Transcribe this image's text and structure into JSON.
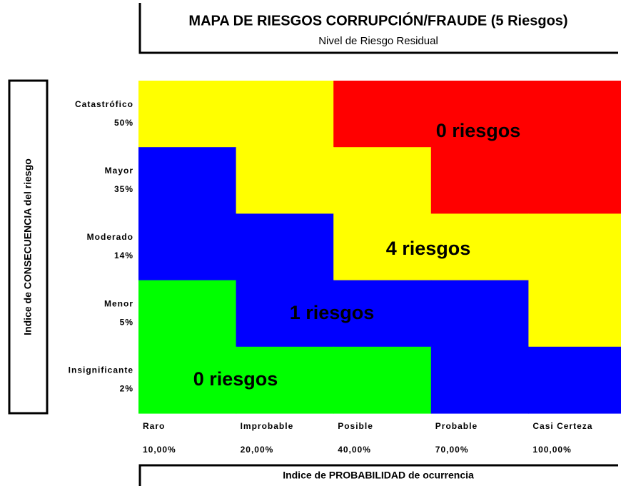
{
  "title": "MAPA DE RIESGOS CORRUPCIÓN/FRAUDE (5 Riesgos)",
  "subtitle": "Nivel de Riesgo Residual",
  "y_axis_label": "Indice de CONSECUENCIA del riesgo",
  "x_axis_label": "Indice de PROBABILIDAD de ocurrencia",
  "rows": [
    {
      "label": "Catastrófico",
      "value": "50%"
    },
    {
      "label": "Mayor",
      "value": "35%"
    },
    {
      "label": "Moderado",
      "value": "14%"
    },
    {
      "label": "Menor",
      "value": "5%"
    },
    {
      "label": "Insignificante",
      "value": "2%"
    }
  ],
  "columns": [
    {
      "label": "Raro",
      "value": "10,00%"
    },
    {
      "label": "Improbable",
      "value": "20,00%"
    },
    {
      "label": "Posible",
      "value": "40,00%"
    },
    {
      "label": "Probable",
      "value": "70,00%"
    },
    {
      "label": "Casi Certeza",
      "value": "100,00%"
    }
  ],
  "cells": [
    [
      "#ffff00",
      "#ffff00",
      "#ff0000",
      "#ff0000",
      "#ff0000"
    ],
    [
      "#0000ff",
      "#ffff00",
      "#ffff00",
      "#ff0000",
      "#ff0000"
    ],
    [
      "#0000ff",
      "#0000ff",
      "#ffff00",
      "#ffff00",
      "#ffff00"
    ],
    [
      "#00ff00",
      "#0000ff",
      "#0000ff",
      "#0000ff",
      "#ffff00"
    ],
    [
      "#00ff00",
      "#00ff00",
      "#00ff00",
      "#0000ff",
      "#0000ff"
    ]
  ],
  "zones": [
    "0 riesgos",
    "4 riesgos",
    "1 riesgos",
    "0 riesgos"
  ]
}
